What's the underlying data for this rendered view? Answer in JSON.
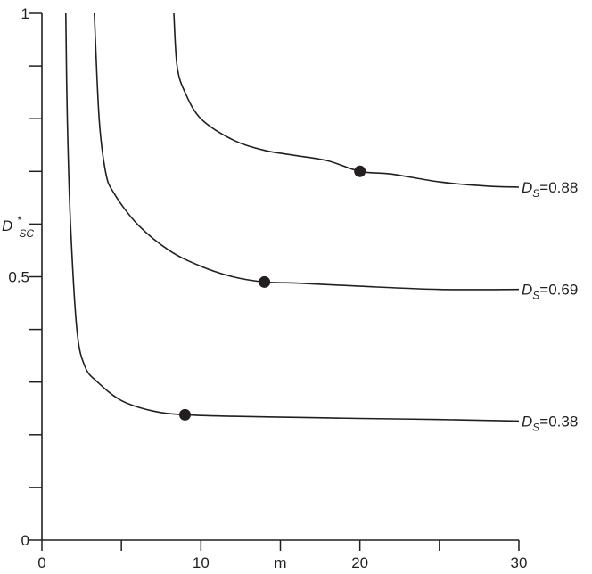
{
  "chart_data": {
    "type": "line",
    "xlabel": "m",
    "ylabel": {
      "base": "D",
      "sub": "SC",
      "sup": "*"
    },
    "xlim": [
      0,
      30
    ],
    "ylim": [
      0,
      1
    ],
    "x_ticks": [
      0,
      5,
      10,
      15,
      20,
      25,
      30
    ],
    "x_tick_labels": [
      "0",
      "",
      "10",
      "",
      "20",
      "",
      "30"
    ],
    "y_ticks": [
      0,
      0.1,
      0.2,
      0.3,
      0.4,
      0.5,
      0.6,
      0.7,
      0.8,
      0.9,
      1
    ],
    "y_tick_labels": [
      "0",
      "",
      "",
      "",
      "",
      "0.5",
      "",
      "",
      "",
      "",
      "1"
    ],
    "grid": false,
    "series": [
      {
        "name": "D_S=0.88",
        "label": {
          "base": "D",
          "sub": "S",
          "value": "=0.88"
        },
        "points": [
          [
            8.3,
            1.0
          ],
          [
            8.5,
            0.9
          ],
          [
            9,
            0.85
          ],
          [
            10,
            0.8
          ],
          [
            12,
            0.76
          ],
          [
            14,
            0.74
          ],
          [
            16,
            0.73
          ],
          [
            18,
            0.72
          ],
          [
            20,
            0.7
          ],
          [
            22,
            0.695
          ],
          [
            25,
            0.68
          ],
          [
            28,
            0.672
          ],
          [
            30,
            0.67
          ]
        ],
        "marker": [
          20,
          0.7
        ]
      },
      {
        "name": "D_S=0.69",
        "label": {
          "base": "D",
          "sub": "S",
          "value": "=0.69"
        },
        "points": [
          [
            3.3,
            1.0
          ],
          [
            3.6,
            0.8
          ],
          [
            4,
            0.7
          ],
          [
            4.5,
            0.66
          ],
          [
            6,
            0.6
          ],
          [
            8,
            0.55
          ],
          [
            10,
            0.52
          ],
          [
            12,
            0.5
          ],
          [
            14,
            0.49
          ],
          [
            16,
            0.488
          ],
          [
            20,
            0.482
          ],
          [
            25,
            0.476
          ],
          [
            30,
            0.476
          ]
        ],
        "marker": [
          14,
          0.49
        ]
      },
      {
        "name": "D_S=0.38",
        "label": {
          "base": "D",
          "sub": "S",
          "value": "=0.38"
        },
        "points": [
          [
            1.5,
            1.0
          ],
          [
            1.6,
            0.8
          ],
          [
            1.8,
            0.6
          ],
          [
            2.2,
            0.4
          ],
          [
            2.7,
            0.33
          ],
          [
            3.5,
            0.3
          ],
          [
            5,
            0.265
          ],
          [
            7,
            0.245
          ],
          [
            9,
            0.238
          ],
          [
            12,
            0.235
          ],
          [
            16,
            0.233
          ],
          [
            20,
            0.231
          ],
          [
            25,
            0.229
          ],
          [
            30,
            0.226
          ]
        ],
        "marker": [
          9,
          0.238
        ]
      }
    ]
  }
}
